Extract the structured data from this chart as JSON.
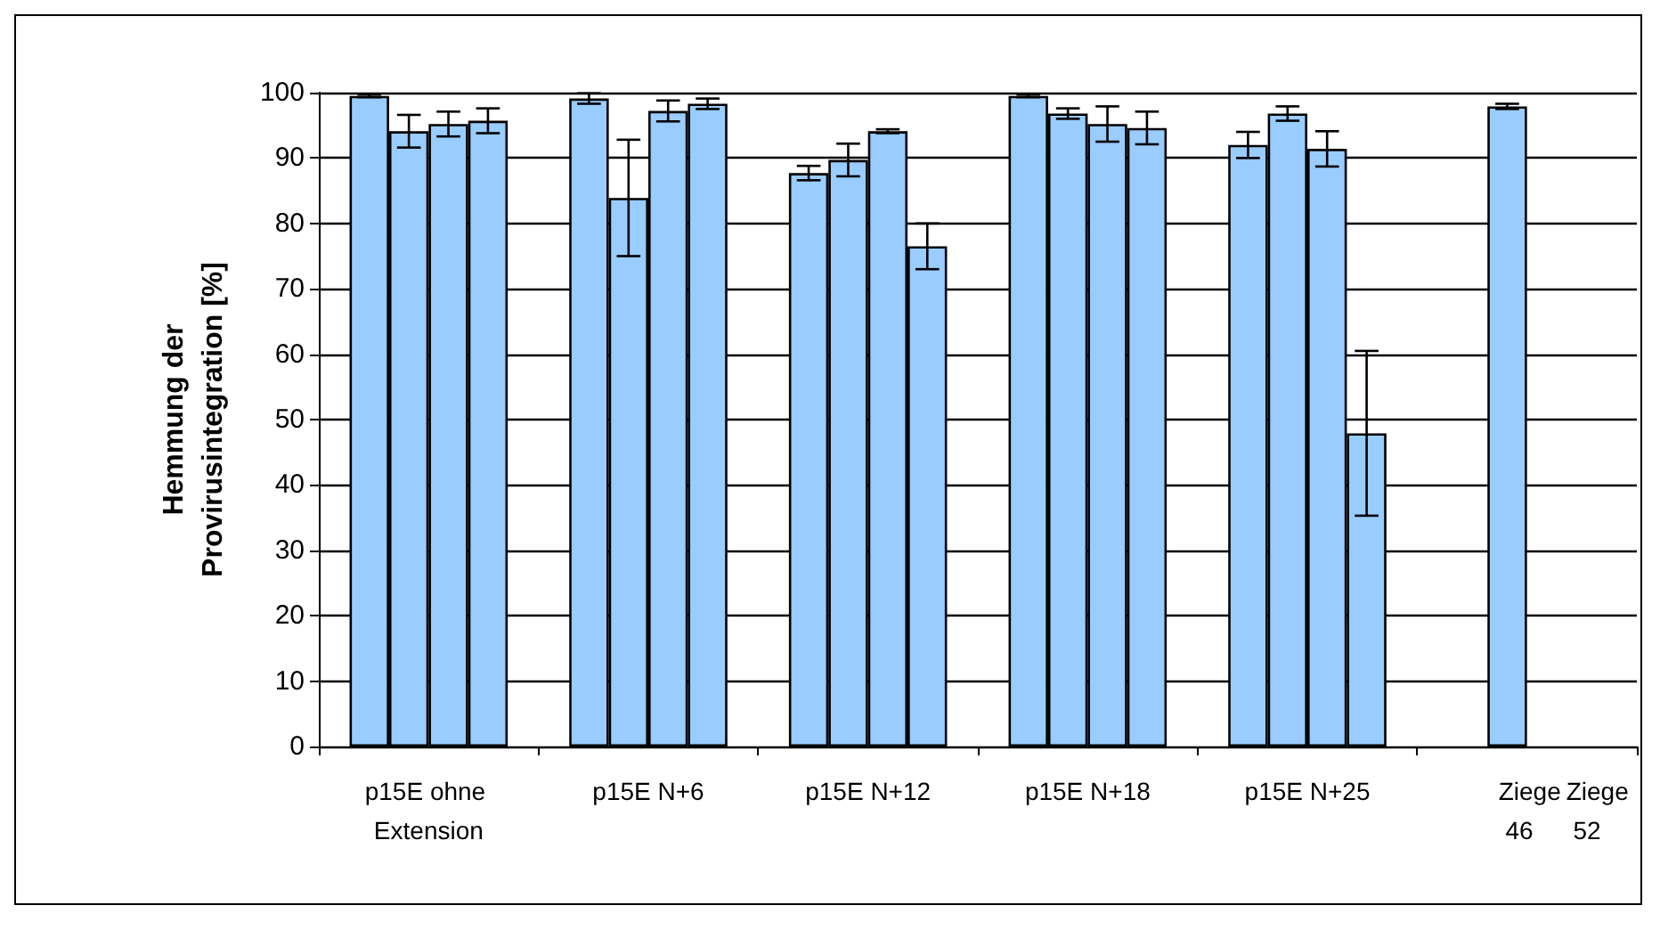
{
  "chart_data": {
    "type": "bar",
    "ylabel": "Hemmung der Provirusintegration [%]",
    "categories": [
      "p15E ohne Extension",
      "p15E N+6",
      "p15E N+12",
      "p15E N+18",
      "p15E N+25",
      null
    ],
    "series": [
      {
        "color": "#99ccff",
        "values": [
          99.5,
          99.1,
          87.7,
          99.5,
          92.0,
          null
        ],
        "errors": [
          0.2,
          0.8,
          1.1,
          0.2,
          2.0,
          null
        ]
      },
      {
        "color": "#99ccff",
        "values": [
          94.1,
          83.9,
          89.7,
          96.8,
          96.8,
          97.9
        ],
        "errors": [
          2.5,
          8.9,
          2.5,
          0.8,
          1.1,
          0.4
        ]
      },
      {
        "color": "#99ccff",
        "values": [
          95.2,
          97.2,
          94.1,
          95.2,
          91.4,
          null
        ],
        "errors": [
          1.9,
          1.6,
          0.3,
          2.7,
          2.7,
          null
        ]
      },
      {
        "color": "#99ccff",
        "values": [
          95.7,
          98.3,
          76.5,
          94.6,
          47.9,
          null
        ],
        "errors": [
          1.9,
          0.8,
          3.5,
          2.5,
          12.6,
          null
        ]
      }
    ],
    "ylim": [
      0,
      100
    ],
    "yticks": [
      0,
      10,
      20,
      30,
      40,
      50,
      60,
      70,
      80,
      90,
      100
    ],
    "grid": "y",
    "annotations": [
      "Ziege 46",
      "Ziege 52"
    ]
  }
}
